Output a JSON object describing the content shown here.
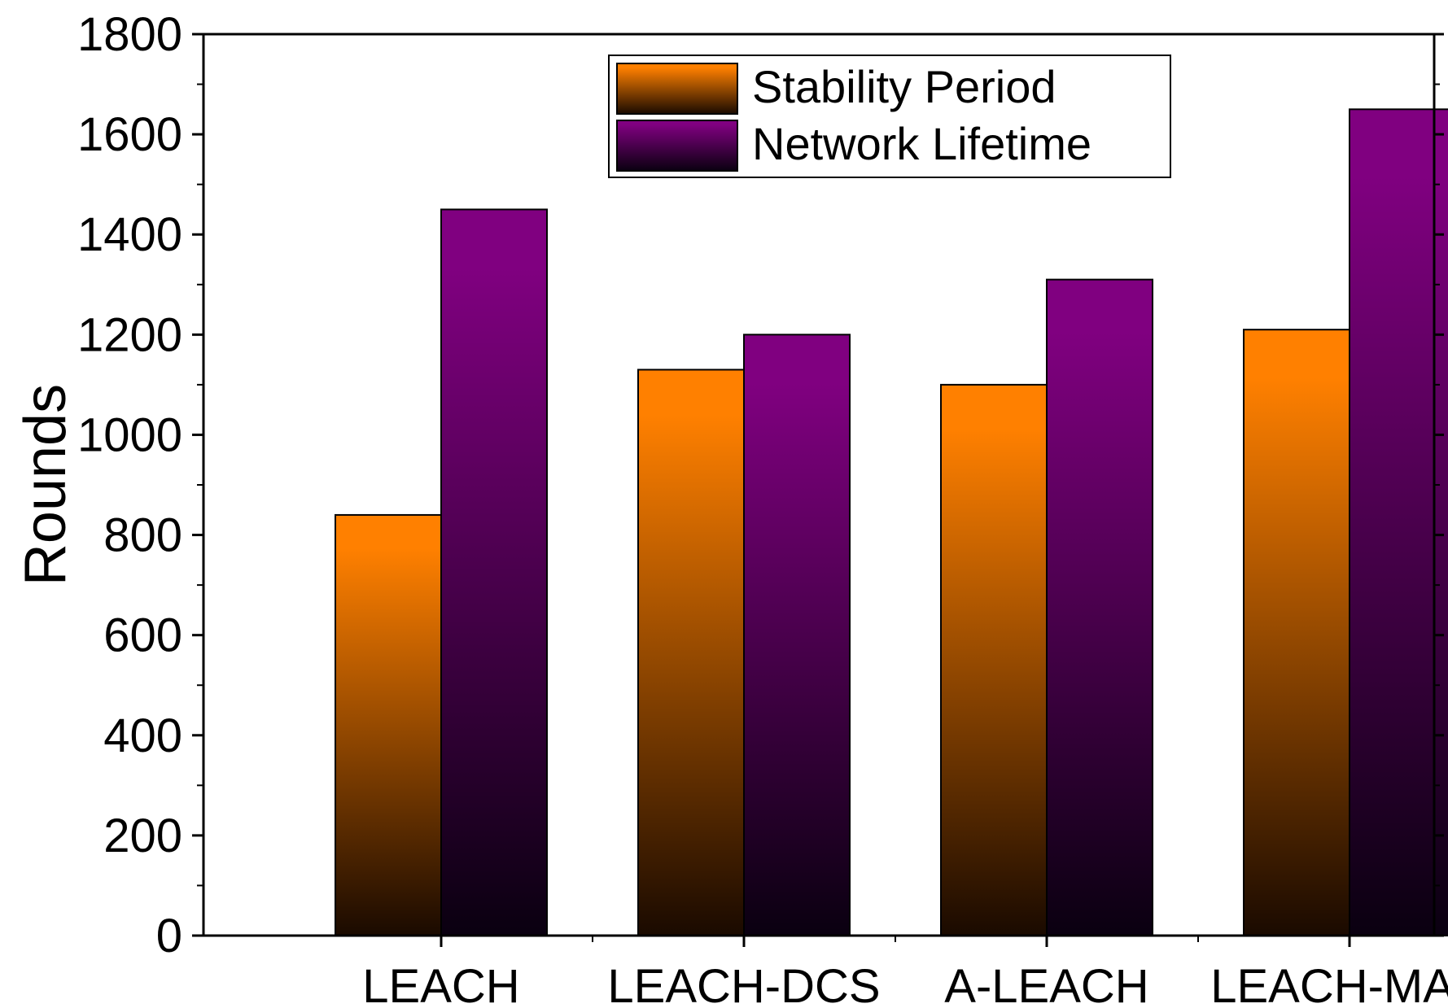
{
  "chart_data": {
    "type": "bar",
    "title": "",
    "xlabel": "",
    "ylabel": "Rounds",
    "categories": [
      "LEACH",
      "LEACH-DCS",
      "A-LEACH",
      "LEACH-MAC"
    ],
    "series": [
      {
        "name": "Stability Period",
        "values": [
          840,
          1130,
          1100,
          1210
        ],
        "color": "#ff8000",
        "color_dark": "#1a0a00"
      },
      {
        "name": "Network Lifetime",
        "values": [
          1450,
          1200,
          1310,
          1650
        ],
        "color": "#800080",
        "color_dark": "#0a0010"
      }
    ],
    "ylim": [
      0,
      1800
    ],
    "yticks": [
      0,
      200,
      400,
      600,
      800,
      1000,
      1200,
      1400,
      1600,
      1800
    ],
    "grid": false,
    "legend_position": "top-right"
  }
}
